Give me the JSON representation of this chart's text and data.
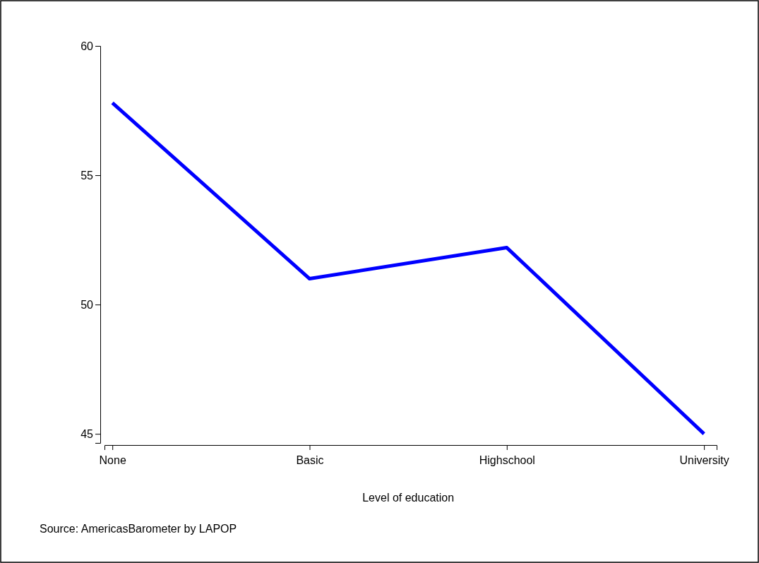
{
  "chart_data": {
    "type": "line",
    "xlabel": "Level of education",
    "categories": [
      "None",
      "Basic",
      "Highschool",
      "University"
    ],
    "series": [
      {
        "color": "#0000ff",
        "values": [
          57.8,
          51.0,
          52.2,
          45.0
        ]
      }
    ],
    "ylim": [
      44.65,
      60
    ],
    "yticks": [
      45,
      50,
      55,
      60
    ],
    "annotations": [
      "Source: AmericasBarometer by LAPOP"
    ]
  }
}
